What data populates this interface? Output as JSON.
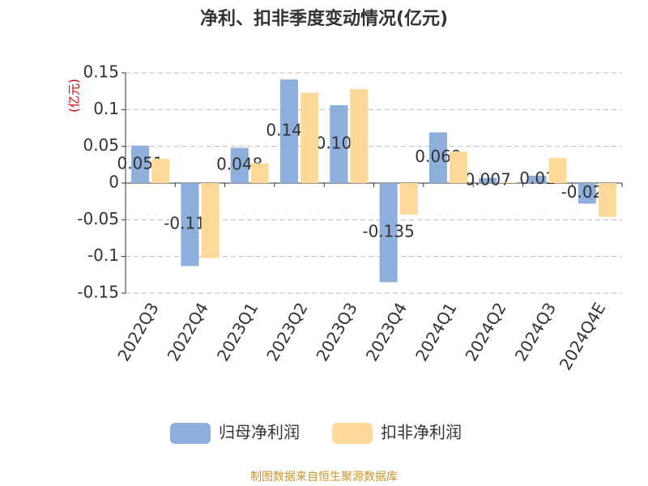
{
  "chart_data": {
    "type": "bar",
    "title": "净利、扣非季度变动情况(亿元)",
    "y_label": "(亿元)",
    "categories": [
      "2022Q3",
      "2022Q4",
      "2023Q1",
      "2023Q2",
      "2023Q3",
      "2023Q4",
      "2024Q1",
      "2024Q2",
      "2024Q3",
      "2024Q4E"
    ],
    "series": [
      {
        "name": "归母净利润",
        "color": "#8eaedb",
        "values": [
          0.051,
          -0.113,
          0.048,
          0.141,
          0.106,
          -0.135,
          0.069,
          0.007,
          0.01,
          -0.028
        ],
        "show_labels": true
      },
      {
        "name": "扣非净利润",
        "color": "#fdd999",
        "values": [
          0.033,
          -0.102,
          0.027,
          0.123,
          0.128,
          -0.043,
          0.043,
          0.001,
          0.034,
          -0.046
        ],
        "show_labels": false
      }
    ],
    "ylim": [
      -0.15,
      0.15
    ],
    "yticks": [
      -0.15,
      -0.1,
      -0.05,
      0,
      0.05,
      0.1,
      0.15
    ],
    "grid": true,
    "source": "制图数据来自恒生聚源数据库"
  }
}
